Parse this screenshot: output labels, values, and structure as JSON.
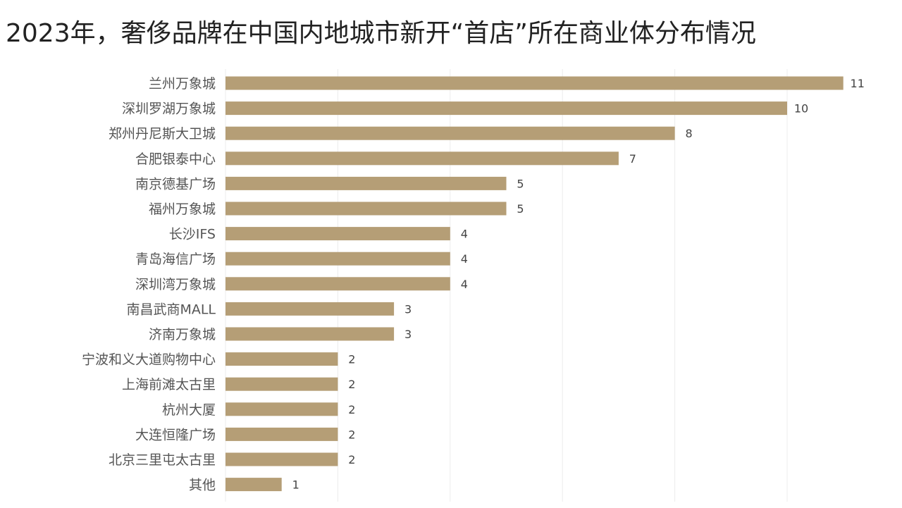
{
  "title": "2023年，奢侈品牌在中国内地城市新开“首店”所在商业体分布情况",
  "colors": {
    "bar": "#b59e76",
    "grid": "#ececec",
    "label": "#555555",
    "value": "#444444",
    "title": "#222222"
  },
  "chart_data": {
    "type": "bar",
    "orientation": "horizontal",
    "title": "2023年，奢侈品牌在中国内地城市新开“首店”所在商业体分布情况",
    "xlabel": "",
    "ylabel": "",
    "xlim": [
      0,
      11
    ],
    "grid": true,
    "categories": [
      "兰州万象城",
      "深圳罗湖万象城",
      "郑州丹尼斯大卫城",
      "合肥银泰中心",
      "南京德基广场",
      "福州万象城",
      "长沙IFS",
      "青岛海信广场",
      "深圳湾万象城",
      "南昌武商MALL",
      "济南万象城",
      "宁波和义大道购物中心",
      "上海前滩太古里",
      "杭州大厦",
      "大连恒隆广场",
      "北京三里屯太古里",
      "其他"
    ],
    "values": [
      11,
      10,
      8,
      7,
      5,
      5,
      4,
      4,
      4,
      3,
      3,
      2,
      2,
      2,
      2,
      2,
      1
    ]
  }
}
